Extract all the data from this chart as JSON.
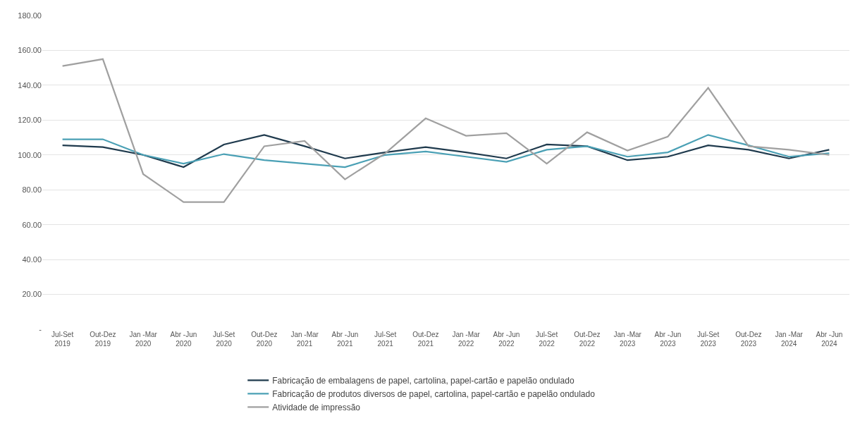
{
  "chart_data": {
    "type": "line",
    "categories": [
      "Jul-Set\n2019",
      "Out-Dez\n2019",
      "Jan -Mar\n2020",
      "Abr -Jun\n2020",
      "Jul-Set\n2020",
      "Out-Dez\n2020",
      "Jan -Mar\n2021",
      "Abr -Jun\n2021",
      "Jul-Set\n2021",
      "Out-Dez\n2021",
      "Jan -Mar\n2022",
      "Abr -Jun\n2022",
      "Jul-Set\n2022",
      "Out-Dez\n2022",
      "Jan -Mar\n2023",
      "Abr -Jun\n2023",
      "Jul-Set\n2023",
      "Out-Dez\n2023",
      "Jan -Mar\n2024",
      "Abr -Jun\n2024"
    ],
    "series": [
      {
        "name": "Fabricação de embalagens de papel, cartolina, papel-cartão e papelão ondulado",
        "color": "#1f3a4d",
        "values": [
          105.5,
          104.5,
          100,
          93,
          106,
          111.5,
          105,
          98,
          101.5,
          104.5,
          101.5,
          98,
          106,
          105,
          97,
          99,
          105.5,
          103,
          98,
          103
        ]
      },
      {
        "name": "Fabricação de produtos diversos de papel, cartolina, papel-cartão e papelão ondulado",
        "color": "#4aa0b5",
        "values": [
          109,
          109,
          100,
          95,
          100.5,
          97,
          95,
          93,
          100,
          102,
          99,
          96,
          103,
          105,
          99,
          101.5,
          111.5,
          105.5,
          99,
          101
        ]
      },
      {
        "name": "Atividade de impressão",
        "color": "#a0a0a0",
        "values": [
          151,
          155,
          89,
          73,
          73,
          105,
          108,
          86,
          101,
          121,
          111,
          112.5,
          95,
          113,
          102.5,
          110.5,
          138.5,
          105,
          103,
          100
        ]
      }
    ],
    "ylim": [
      0,
      180
    ],
    "yticks": [
      {
        "value": 0,
        "label": "-"
      },
      {
        "value": 20,
        "label": "20.00"
      },
      {
        "value": 40,
        "label": "40.00"
      },
      {
        "value": 60,
        "label": "60.00"
      },
      {
        "value": 80,
        "label": "80.00"
      },
      {
        "value": 100,
        "label": "100.00"
      },
      {
        "value": 120,
        "label": "120.00"
      },
      {
        "value": 140,
        "label": "140.00"
      },
      {
        "value": 160,
        "label": "160.00"
      },
      {
        "value": 180,
        "label": "180.00"
      }
    ],
    "grid": "y",
    "legend": "bottom",
    "marker": "none",
    "line_style": "solid"
  }
}
